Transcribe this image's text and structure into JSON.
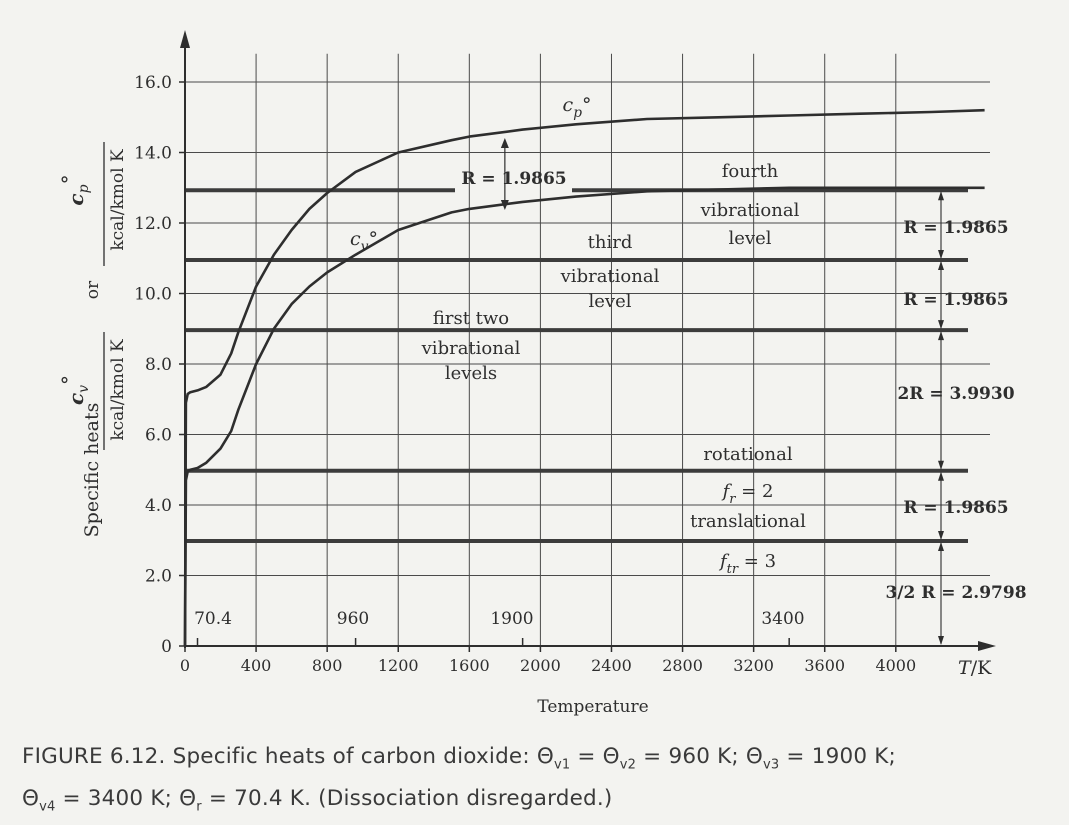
{
  "chart_data": {
    "type": "line",
    "xlabel": "Temperature",
    "x_unit_label": "T/K",
    "ylabel": "Specific heats",
    "ylabel_or": "or",
    "ylabel_cp_unit": "kcal/kmol K",
    "ylabel_cv_unit": "kcal/kmol K",
    "xlim": [
      0,
      4600
    ],
    "ylim": [
      0,
      16.8
    ],
    "x_ticks": [
      0,
      400,
      800,
      1200,
      1600,
      2000,
      2400,
      2800,
      3200,
      3600,
      4000
    ],
    "y_ticks": [
      0,
      2.0,
      4.0,
      6.0,
      8.0,
      10.0,
      12.0,
      14.0,
      16.0
    ],
    "y_tick_labels": [
      "0",
      "2.0",
      "4.0",
      "6.0",
      "8.0",
      "10.0",
      "12.0",
      "14.0",
      "16.0"
    ],
    "grid": true,
    "series": [
      {
        "name": "c_p°",
        "x": [
          0,
          5,
          15,
          30,
          70.4,
          120,
          200,
          260,
          300,
          400,
          500,
          600,
          700,
          800,
          960,
          1200,
          1500,
          1600,
          1900,
          2200,
          2600,
          3000,
          3400,
          3800,
          4200,
          4500
        ],
        "y": [
          0.0,
          6.9,
          7.15,
          7.2,
          7.25,
          7.35,
          7.7,
          8.3,
          8.9,
          10.2,
          11.1,
          11.8,
          12.4,
          12.85,
          13.45,
          14.0,
          14.35,
          14.45,
          14.65,
          14.8,
          14.95,
          15.0,
          15.05,
          15.1,
          15.15,
          15.2
        ]
      },
      {
        "name": "c_v°",
        "x": [
          0,
          5,
          15,
          30,
          70.4,
          120,
          200,
          260,
          300,
          400,
          500,
          600,
          700,
          800,
          960,
          1200,
          1500,
          1600,
          1900,
          2200,
          2600,
          3000,
          3400,
          3800,
          4200,
          4500
        ],
        "y": [
          0.0,
          4.7,
          4.95,
          5.0,
          5.05,
          5.2,
          5.6,
          6.1,
          6.7,
          8.0,
          9.0,
          9.7,
          10.2,
          10.6,
          11.1,
          11.8,
          12.3,
          12.4,
          12.6,
          12.75,
          12.9,
          12.95,
          13.0,
          13.0,
          13.0,
          13.0
        ]
      }
    ],
    "reference_levels": [
      {
        "y": 2.98,
        "above": "translational",
        "below": "f_tr = 3"
      },
      {
        "y": 4.97,
        "above": "rotational",
        "below": "f_r = 2"
      },
      {
        "y": 8.96,
        "above": "first two",
        "middle": "vibrational",
        "below": "levels"
      },
      {
        "y": 10.95,
        "above": "third",
        "middle": "vibrational",
        "below": "level"
      },
      {
        "y": 12.93,
        "above": "fourth",
        "middle": "vibrational",
        "below": "level"
      }
    ],
    "right_annotations": [
      {
        "label": "3/2 R = 2.9798",
        "from": 0,
        "to": 2.98
      },
      {
        "label": "R = 1.9865",
        "from": 2.98,
        "to": 4.97
      },
      {
        "label": "2R = 3.9930",
        "from": 4.97,
        "to": 8.96
      },
      {
        "label": "R = 1.9865",
        "from": 8.96,
        "to": 10.95
      },
      {
        "label": "R = 1.9865",
        "from": 10.95,
        "to": 12.93
      }
    ],
    "mid_annotation": {
      "label": "R = 1.9865",
      "x": 1800
    },
    "theta_markers": [
      {
        "x": 70.4,
        "label": "70.4"
      },
      {
        "x": 960,
        "label": "960"
      },
      {
        "x": 1900,
        "label": "1900"
      },
      {
        "x": 3400,
        "label": "3400"
      }
    ],
    "curve_labels": {
      "cp": "c_p°",
      "cv": "c_v°"
    }
  },
  "caption": {
    "prefix": "FIGURE 6.12. Specific heats of carbon dioxide: ",
    "theta": "Θ",
    "s1": "v1",
    "s2": "v2",
    "s3": "v3",
    "s4": "v4",
    "sr": "r",
    "eq": " = ",
    "v12": "960 K; ",
    "v3": "1900 K;",
    "v4": "3400 K; ",
    "vr": "70.4 K. (Dissociation disregarded.)"
  },
  "colors": {
    "ink": "#2e2e2e",
    "grid": "#4a4a4a",
    "level": "#3c3c3c",
    "background": "#f3f3f0"
  }
}
